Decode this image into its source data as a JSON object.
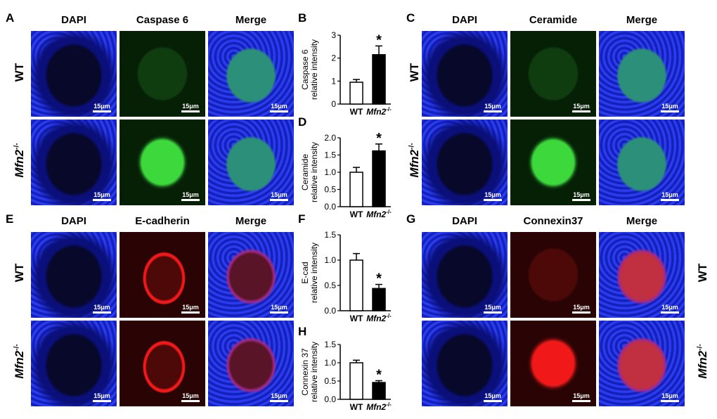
{
  "letters": {
    "A": "A",
    "B": "B",
    "C": "C",
    "D": "D",
    "E": "E",
    "F": "F",
    "G": "G",
    "H": "H"
  },
  "headers": {
    "A": [
      "DAPI",
      "Caspase 6",
      "Merge"
    ],
    "C": [
      "DAPI",
      "Ceramide",
      "Merge"
    ],
    "E": [
      "DAPI",
      "E-cadherin",
      "Merge"
    ],
    "G": [
      "DAPI",
      "Connexin37",
      "Merge"
    ]
  },
  "row_labels": {
    "wt": "WT",
    "mfn2": "Mfn2",
    "mfn2_sup": "-/-"
  },
  "scale_label": "15μm",
  "colors": {
    "dapi": "#1d2ee0",
    "green": "#3cd83c",
    "red": "#f01818",
    "merge_green": "#2b8f7a",
    "merge_red": "#a02a8a"
  },
  "chart_data": [
    {
      "type": "bar",
      "panel": "B",
      "categories": [
        "WT",
        "Mfn2-/-"
      ],
      "values": [
        0.95,
        2.15
      ],
      "errors": [
        0.12,
        0.38
      ],
      "ylim": [
        0,
        3
      ],
      "yticks": [
        0,
        1,
        2,
        3
      ],
      "ylabel": [
        "Caspase 6",
        "relative intensity"
      ],
      "significance": "*",
      "fills": [
        "#ffffff",
        "#000000"
      ]
    },
    {
      "type": "bar",
      "panel": "D",
      "categories": [
        "WT",
        "Mfn2-/-"
      ],
      "values": [
        1.0,
        1.62
      ],
      "errors": [
        0.14,
        0.2
      ],
      "ylim": [
        0,
        2.0
      ],
      "yticks": [
        0.0,
        0.5,
        1.0,
        1.5,
        2.0
      ],
      "ylabel": [
        "Ceramide",
        "relative intensity"
      ],
      "significance": "*",
      "fills": [
        "#ffffff",
        "#000000"
      ]
    },
    {
      "type": "bar",
      "panel": "F",
      "categories": [
        "WT",
        "Mfn2-/-"
      ],
      "values": [
        1.0,
        0.44
      ],
      "errors": [
        0.13,
        0.08
      ],
      "ylim": [
        0,
        1.5
      ],
      "yticks": [
        0.0,
        0.5,
        1.0,
        1.5
      ],
      "ylabel": [
        "E-cad",
        "relative intensity"
      ],
      "significance": "*",
      "fills": [
        "#ffffff",
        "#000000"
      ]
    },
    {
      "type": "bar",
      "panel": "H",
      "categories": [
        "WT",
        "Mfn2-/-"
      ],
      "values": [
        1.0,
        0.46
      ],
      "errors": [
        0.07,
        0.05
      ],
      "ylim": [
        0,
        1.5
      ],
      "yticks": [
        0.0,
        0.5,
        1.0,
        1.5
      ],
      "ylabel": [
        "Connexin 37",
        "relative intensity"
      ],
      "significance": "*",
      "fills": [
        "#ffffff",
        "#000000"
      ]
    }
  ]
}
